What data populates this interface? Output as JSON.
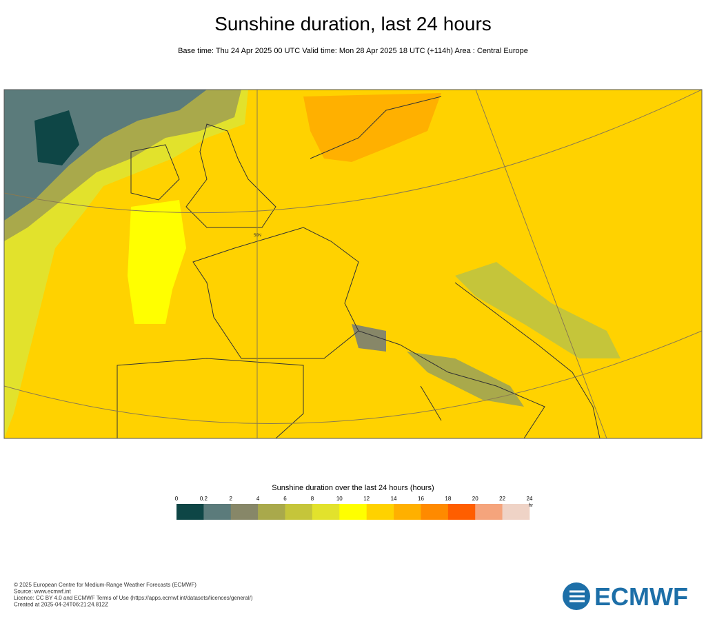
{
  "header": {
    "title": "Sunshine duration, last 24 hours",
    "subtitle": "Base time: Thu 24 Apr 2025 00 UTC Valid time: Mon 28 Apr 2025 18 UTC (+114h) Area : Central Europe"
  },
  "map": {
    "lat_label": "50N"
  },
  "colorbar": {
    "title": "Sunshine duration over the last 24 hours (hours)",
    "unit": "hr",
    "ticks": [
      0,
      0.2,
      2,
      4,
      6,
      8,
      10,
      12,
      14,
      16,
      18,
      20,
      22,
      24
    ],
    "colors": [
      "#0e4646",
      "#5b7b7b",
      "#878768",
      "#a9a94b",
      "#c5c53a",
      "#e2e22c",
      "#ffff00",
      "#ffd200",
      "#ffb000",
      "#ff8a00",
      "#ff5e00",
      "#f5a47c",
      "#efd3c6"
    ]
  },
  "footer": {
    "lines": [
      "© 2025 European Centre for Medium-Range Weather Forecasts (ECMWF)",
      "Source: www.ecmwf.int",
      "Licence: CC BY 4.0 and ECMWF Terms of Use (https://apps.ecmwf.int/datasets/licences/general/)",
      "Created at 2025-04-24T06:21:24.812Z"
    ],
    "logo": "ECMWF"
  }
}
